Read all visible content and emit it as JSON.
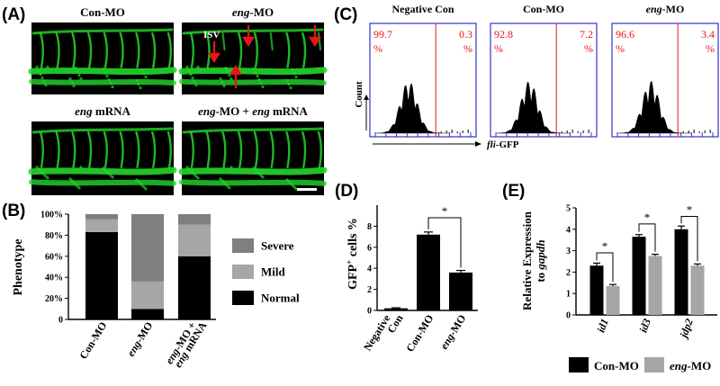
{
  "panel_letters": {
    "a": "(A)",
    "b": "(B)",
    "c": "(C)",
    "d": "(D)",
    "e": "(E)"
  },
  "panel_a": {
    "images": [
      {
        "title_prefix": "Con-MO",
        "title_suffix": ""
      },
      {
        "title_prefix": "eng",
        "title_suffix": "-MO"
      },
      {
        "title_prefix": "eng",
        "title_suffix": " mRNA"
      },
      {
        "title_prefix": "eng",
        "title_suffix": "-MO + eng mRNA"
      }
    ],
    "title_4_part1": "eng",
    "title_4_part2": "-MO + ",
    "title_4_part3": "eng",
    "title_4_part4": " mRNA",
    "isv_label": "ISV",
    "vessel_color": "#22d82a",
    "arrow_color": "#e8151b"
  },
  "chart_data": [
    {
      "panel": "B",
      "type": "bar",
      "stacked": true,
      "ylabel": "Phenotype",
      "ylim": [
        0,
        100
      ],
      "yticks": [
        "0",
        "20%",
        "40%",
        "60%",
        "80%",
        "100%"
      ],
      "categories": [
        "Con-MO",
        "eng-MO",
        "eng-MO + eng mRNA"
      ],
      "series": [
        {
          "name": "Normal",
          "color": "#000000",
          "values": [
            83,
            10,
            60
          ]
        },
        {
          "name": "Mild",
          "color": "#a6a6a6",
          "values": [
            12,
            26,
            30
          ]
        },
        {
          "name": "Severe",
          "color": "#7f7f7f",
          "values": [
            5,
            64,
            10
          ]
        }
      ],
      "legend": [
        "Severe",
        "Mild",
        "Normal"
      ]
    },
    {
      "panel": "C",
      "type": "histogram",
      "xlabel": "fli-GFP",
      "ylabel": "Count",
      "plots": [
        {
          "title": "Negative Con",
          "left": "99.7",
          "right": "0.3",
          "unit": "%"
        },
        {
          "title": "Con-MO",
          "left": "92.8",
          "right": "7.2",
          "unit": "%"
        },
        {
          "title": "eng-MO",
          "left": "96.6",
          "right": "3.4",
          "unit": "%"
        }
      ],
      "gate_color": "#e8151b",
      "frame_color": "#3333cc"
    },
    {
      "panel": "D",
      "type": "bar",
      "ylabel": "GFP+ cells %",
      "ylim": [
        0,
        10
      ],
      "yticks": [
        "0",
        "2",
        "4",
        "6",
        "8"
      ],
      "categories": [
        "Negative Con",
        "Con-MO",
        "eng-MO"
      ],
      "values": [
        0.2,
        7.2,
        3.6
      ],
      "errors": [
        0.05,
        0.25,
        0.2
      ],
      "significance": "*"
    },
    {
      "panel": "E",
      "type": "bar",
      "ylabel": "Relative Expression to gapdh",
      "ylim": [
        0,
        5
      ],
      "yticks": [
        "0",
        "1",
        "2",
        "3",
        "4",
        "5"
      ],
      "categories": [
        "id1",
        "id3",
        "jdp2"
      ],
      "series": [
        {
          "name": "Con-MO",
          "color": "#000000",
          "values": [
            2.3,
            3.65,
            4.0
          ],
          "errors": [
            0.12,
            0.1,
            0.15
          ]
        },
        {
          "name": "eng-MO",
          "color": "#a6a6a6",
          "values": [
            1.35,
            2.75,
            2.3
          ],
          "errors": [
            0.07,
            0.08,
            0.08
          ]
        }
      ],
      "significance": "*"
    }
  ]
}
